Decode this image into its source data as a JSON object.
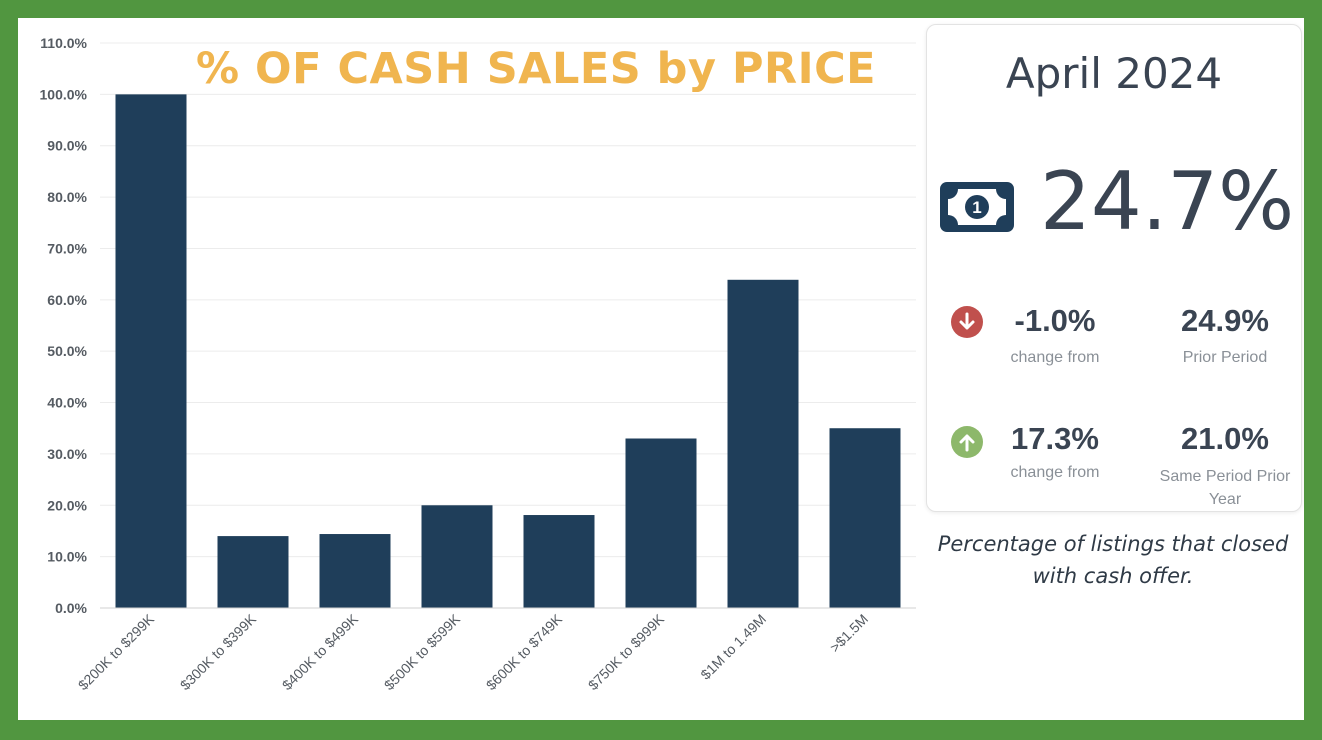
{
  "chart_data": {
    "type": "bar",
    "title": "% OF CASH SALES by PRICE",
    "categories": [
      "$200K to $299K",
      "$300K to $399K",
      "$400K to $499K",
      "$500K to $599K",
      "$600K to $749K",
      "$750K to $999K",
      "$1M to 1.49M",
      ">$1.5M"
    ],
    "values": [
      100.0,
      14.0,
      14.4,
      20.0,
      18.1,
      33.0,
      63.9,
      35.0
    ],
    "ylim": [
      0,
      110
    ],
    "yticks": [
      0,
      10,
      20,
      30,
      40,
      50,
      60,
      70,
      80,
      90,
      100,
      110
    ],
    "ytick_labels": [
      "0.0%",
      "10.0%",
      "20.0%",
      "30.0%",
      "40.0%",
      "50.0%",
      "60.0%",
      "70.0%",
      "80.0%",
      "90.0%",
      "100.0%",
      "110.0%"
    ],
    "bar_color": "#1f3e5a",
    "grid": true,
    "xlabel": "",
    "ylabel": ""
  },
  "summary": {
    "period": "April 2024",
    "value": "24.7%",
    "icon": "money-bill-icon",
    "prior_period": {
      "change": "-1.0%",
      "change_label": "change from",
      "direction": "down",
      "value": "24.9%",
      "label": "Prior Period"
    },
    "prior_year": {
      "change": "17.3%",
      "change_label": "change from",
      "direction": "up",
      "value": "21.0%",
      "label": "Same Period Prior Year"
    }
  },
  "caption": "Percentage of listings that closed with cash offer.",
  "colors": {
    "background_frame": "#519640",
    "title": "#f0b54f",
    "bar": "#1f3e5a",
    "down": "#c0504d",
    "up": "#8db86b",
    "text_dark": "#3a4452"
  }
}
